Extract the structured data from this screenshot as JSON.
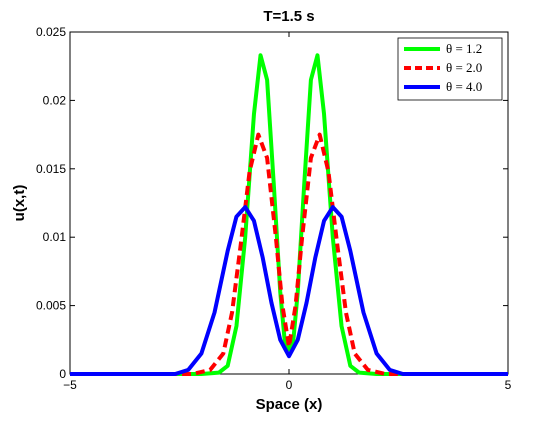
{
  "chart_data": {
    "type": "line",
    "title": "T=1.5 s",
    "xlabel": "Space (x)",
    "ylabel": "u(x,t)",
    "xlim": [
      -5,
      5
    ],
    "ylim": [
      0,
      0.025
    ],
    "x_ticks": [
      "−5",
      "0",
      "5"
    ],
    "y_ticks": [
      "0",
      "0.005",
      "0.01",
      "0.015",
      "0.02",
      "0.025"
    ],
    "grid": false,
    "legend_position": "top-right",
    "series": [
      {
        "name": "θ = 1.2",
        "color": "#00ff00",
        "dash": "solid",
        "x": [
          -5,
          -2.0,
          -1.6,
          -1.4,
          -1.2,
          -1.0,
          -0.8,
          -0.65,
          -0.5,
          -0.35,
          -0.2,
          -0.1,
          0,
          0.1,
          0.2,
          0.35,
          0.5,
          0.65,
          0.8,
          1.0,
          1.2,
          1.4,
          1.6,
          2.0,
          5
        ],
        "y": [
          0,
          0,
          0.0001,
          0.0006,
          0.0035,
          0.01,
          0.019,
          0.0233,
          0.0215,
          0.014,
          0.006,
          0.0025,
          0.0018,
          0.0025,
          0.006,
          0.014,
          0.0215,
          0.0233,
          0.019,
          0.01,
          0.0035,
          0.0006,
          0.0001,
          0,
          0
        ]
      },
      {
        "name": "θ = 2.0",
        "color": "#ff0000",
        "dash": "dashed",
        "x": [
          -5,
          -2.2,
          -1.8,
          -1.5,
          -1.3,
          -1.1,
          -0.9,
          -0.7,
          -0.5,
          -0.3,
          -0.15,
          0,
          0.15,
          0.3,
          0.5,
          0.7,
          0.9,
          1.1,
          1.3,
          1.5,
          1.8,
          2.2,
          5
        ],
        "y": [
          0,
          0,
          0.0003,
          0.0015,
          0.0045,
          0.0095,
          0.0148,
          0.0175,
          0.0158,
          0.01,
          0.005,
          0.002,
          0.005,
          0.01,
          0.0158,
          0.0175,
          0.0148,
          0.0095,
          0.0045,
          0.0015,
          0.0003,
          0,
          0
        ]
      },
      {
        "name": "θ = 4.0",
        "color": "#0000ff",
        "dash": "solid",
        "x": [
          -5,
          -2.6,
          -2.3,
          -2.0,
          -1.7,
          -1.4,
          -1.2,
          -1.0,
          -0.8,
          -0.6,
          -0.4,
          -0.2,
          0,
          0.2,
          0.4,
          0.6,
          0.8,
          1.0,
          1.2,
          1.4,
          1.7,
          2.0,
          2.3,
          2.6,
          5
        ],
        "y": [
          0,
          0,
          0.0003,
          0.0015,
          0.0045,
          0.009,
          0.0115,
          0.0122,
          0.0112,
          0.0085,
          0.0052,
          0.0025,
          0.0013,
          0.0025,
          0.0052,
          0.0085,
          0.0112,
          0.0122,
          0.0115,
          0.009,
          0.0045,
          0.0015,
          0.0003,
          0,
          0
        ]
      }
    ]
  }
}
